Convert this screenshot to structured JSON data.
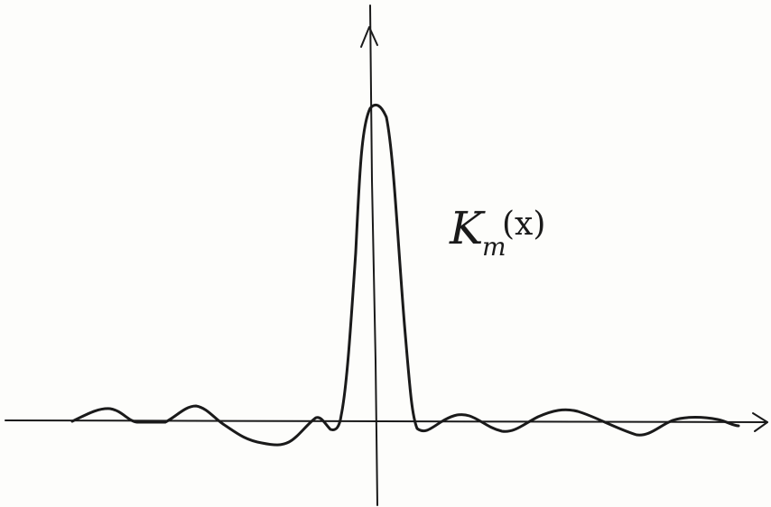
{
  "label": {
    "main": "K",
    "subscript": "m",
    "argument": "(x)"
  }
}
